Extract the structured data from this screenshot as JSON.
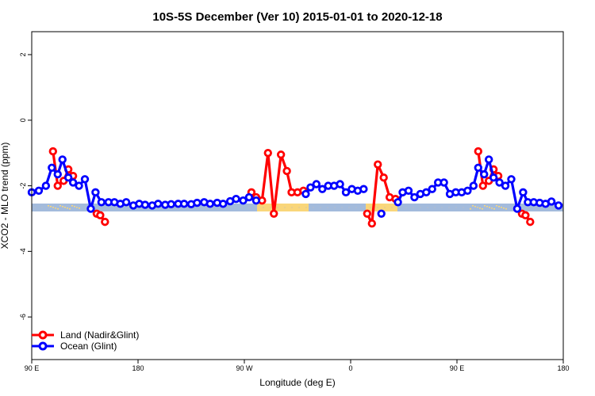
{
  "chart_data": {
    "type": "line",
    "title": "10S-5S December (Ver 10)   2015-01-01 to 2020-12-18",
    "xlabel": "Longitude (deg E)",
    "ylabel": "XCO2 - MLO trend (ppm)",
    "xlim": [
      90,
      540
    ],
    "ylim": [
      -7.3,
      2.7
    ],
    "x_ticks": [
      {
        "value": 90,
        "label": "90 E"
      },
      {
        "value": 180,
        "label": "180"
      },
      {
        "value": 270,
        "label": "90 W"
      },
      {
        "value": 360,
        "label": "0"
      },
      {
        "value": 450,
        "label": "90 E"
      },
      {
        "value": 540,
        "label": "180"
      }
    ],
    "y_ticks": [
      {
        "value": 2,
        "label": "2"
      },
      {
        "value": 0,
        "label": "0"
      },
      {
        "value": -2,
        "label": "-2"
      },
      {
        "value": -4,
        "label": "-4"
      },
      {
        "value": -6,
        "label": "-6"
      }
    ],
    "grid": false,
    "legend_position": "bottom-left",
    "series": [
      {
        "name": "Land (Nadir&Glint)",
        "color": "#ff0000",
        "segments": [
          [
            [
              108,
              -0.95
            ],
            [
              112,
              -2.0
            ],
            [
              117,
              -1.85
            ],
            [
              121,
              -1.5
            ],
            [
              125,
              -1.7
            ]
          ],
          [
            [
              145,
              -2.85
            ],
            [
              148,
              -2.9
            ],
            [
              152,
              -3.1
            ]
          ],
          [
            [
              276,
              -2.2
            ],
            [
              280,
              -2.35
            ],
            [
              285,
              -2.45
            ],
            [
              290,
              -1.0
            ],
            [
              295,
              -2.85
            ],
            [
              301,
              -1.05
            ],
            [
              306,
              -1.55
            ],
            [
              310,
              -2.2
            ],
            [
              315,
              -2.2
            ],
            [
              320,
              -2.15
            ]
          ],
          [
            [
              374,
              -2.85
            ],
            [
              378,
              -3.15
            ],
            [
              383,
              -1.35
            ],
            [
              388,
              -1.75
            ],
            [
              393,
              -2.35
            ],
            [
              398,
              -2.4
            ]
          ],
          [
            [
              468,
              -0.95
            ],
            [
              472,
              -2.0
            ],
            [
              477,
              -1.85
            ],
            [
              481,
              -1.5
            ],
            [
              485,
              -1.7
            ]
          ],
          [
            [
              505,
              -2.85
            ],
            [
              508,
              -2.9
            ],
            [
              512,
              -3.1
            ]
          ]
        ]
      },
      {
        "name": "Ocean (Glint)",
        "color": "#0000ff",
        "segments": [
          [
            [
              90,
              -2.2
            ],
            [
              96,
              -2.15
            ],
            [
              102,
              -2.0
            ],
            [
              107,
              -1.45
            ],
            [
              112,
              -1.65
            ],
            [
              116,
              -1.2
            ],
            [
              121,
              -1.75
            ],
            [
              125,
              -1.9
            ],
            [
              130,
              -2.0
            ],
            [
              135,
              -1.8
            ],
            [
              140,
              -2.7
            ],
            [
              144,
              -2.2
            ],
            [
              149,
              -2.5
            ],
            [
              155,
              -2.5
            ],
            [
              160,
              -2.5
            ],
            [
              165,
              -2.55
            ],
            [
              170,
              -2.5
            ],
            [
              176,
              -2.6
            ],
            [
              181,
              -2.55
            ],
            [
              186,
              -2.58
            ],
            [
              192,
              -2.6
            ],
            [
              197,
              -2.55
            ],
            [
              203,
              -2.58
            ],
            [
              208,
              -2.56
            ],
            [
              214,
              -2.55
            ],
            [
              219,
              -2.55
            ],
            [
              225,
              -2.56
            ],
            [
              230,
              -2.52
            ],
            [
              236,
              -2.5
            ],
            [
              241,
              -2.55
            ],
            [
              247,
              -2.52
            ],
            [
              252,
              -2.55
            ],
            [
              258,
              -2.47
            ],
            [
              263,
              -2.4
            ],
            [
              269,
              -2.45
            ],
            [
              274,
              -2.35
            ],
            [
              280,
              -2.45
            ]
          ],
          [
            [
              322,
              -2.25
            ],
            [
              326,
              -2.05
            ],
            [
              331,
              -1.95
            ],
            [
              336,
              -2.1
            ],
            [
              341,
              -2.0
            ],
            [
              346,
              -2.0
            ],
            [
              351,
              -1.95
            ],
            [
              356,
              -2.2
            ],
            [
              361,
              -2.1
            ],
            [
              366,
              -2.15
            ],
            [
              371,
              -2.1
            ]
          ],
          [
            [
              386,
              -2.85
            ]
          ],
          [
            [
              400,
              -2.5
            ],
            [
              404,
              -2.2
            ],
            [
              409,
              -2.15
            ],
            [
              414,
              -2.35
            ],
            [
              419,
              -2.25
            ],
            [
              424,
              -2.2
            ],
            [
              429,
              -2.1
            ],
            [
              434,
              -1.9
            ],
            [
              439,
              -1.9
            ],
            [
              444,
              -2.25
            ],
            [
              449,
              -2.2
            ],
            [
              454,
              -2.2
            ],
            [
              459,
              -2.15
            ],
            [
              464,
              -2.0
            ],
            [
              468,
              -1.45
            ],
            [
              473,
              -1.65
            ],
            [
              477,
              -1.2
            ],
            [
              481,
              -1.75
            ],
            [
              486,
              -1.9
            ],
            [
              491,
              -2.0
            ],
            [
              496,
              -1.8
            ],
            [
              501,
              -2.7
            ],
            [
              506,
              -2.2
            ],
            [
              510,
              -2.5
            ],
            [
              515,
              -2.5
            ],
            [
              520,
              -2.52
            ],
            [
              525,
              -2.55
            ],
            [
              530,
              -2.48
            ],
            [
              536,
              -2.6
            ]
          ]
        ]
      }
    ],
    "colors": {
      "ocean_band": "#a3bbdc",
      "land_band": "#f9d67a",
      "dots": "#bfbfbf"
    }
  }
}
